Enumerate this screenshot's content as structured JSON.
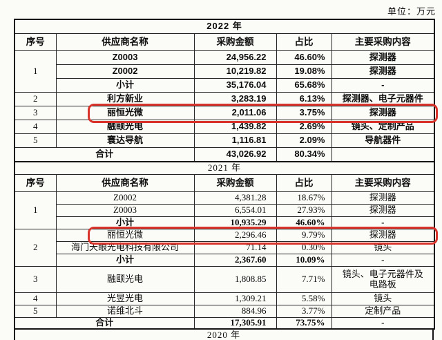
{
  "page": {
    "unit_label": "单位：万元",
    "accent_color": "#d8342c",
    "border_color": "#262626",
    "background_color": "#fbfbf7"
  },
  "tables": [
    {
      "year_label": "2022 年",
      "font_style": "bold",
      "headers": [
        "序号",
        "供应商名称",
        "采购金额",
        "占比",
        "主要采购内容"
      ],
      "rows": [
        {
          "seq": "1",
          "seq_rowspan": 3,
          "supplier": "Z0003",
          "amount": "24,956.22",
          "ratio": "46.60%",
          "content": "探测器"
        },
        {
          "supplier": "Z0002",
          "amount": "10,219.82",
          "ratio": "19.08%",
          "content": "探测器"
        },
        {
          "supplier": "小计",
          "amount": "35,176.04",
          "ratio": "65.68%",
          "content": "-",
          "emphasis": true
        },
        {
          "seq": "2",
          "supplier": "利方新业",
          "amount": "3,283.19",
          "ratio": "6.13%",
          "content": "探测器、电子元器件"
        },
        {
          "seq": "3",
          "supplier": "丽恒光微",
          "amount": "2,011.06",
          "ratio": "3.75%",
          "content": "探测器",
          "highlight": true
        },
        {
          "seq": "4",
          "supplier": "融颐光电",
          "amount": "1,439.82",
          "ratio": "2.69%",
          "content": "镜头、定制产品"
        },
        {
          "seq": "5",
          "supplier": "寰达导航",
          "amount": "1,116.81",
          "ratio": "2.09%",
          "content": "导航器件"
        },
        {
          "total_label": "合计",
          "amount": "43,026.92",
          "ratio": "80.34%",
          "content": "",
          "total": true
        }
      ]
    },
    {
      "year_label": "2021 年",
      "font_style": "serif",
      "headers": [
        "序号",
        "供应商名称",
        "采购金额",
        "占比",
        "主要采购内容"
      ],
      "rows": [
        {
          "seq": "1",
          "seq_rowspan": 3,
          "supplier": "Z0002",
          "amount": "4,381.28",
          "ratio": "18.67%",
          "content": "探测器"
        },
        {
          "supplier": "Z0003",
          "amount": "6,554.01",
          "ratio": "27.93%",
          "content": "探测器"
        },
        {
          "supplier": "小计",
          "amount": "10,935.29",
          "ratio": "46.60%",
          "content": "-",
          "emphasis": true
        },
        {
          "seq": "2",
          "seq_rowspan": 3,
          "supplier": "丽恒光微",
          "amount": "2,296.46",
          "ratio": "9.79%",
          "content": "探测器",
          "highlight": true
        },
        {
          "supplier": "海门天眼光电科技有限公司",
          "amount": "71.14",
          "ratio": "0.30%",
          "content": "镜头"
        },
        {
          "supplier": "小计",
          "amount": "2,367.60",
          "ratio": "10.09%",
          "content": "-",
          "emphasis": true
        },
        {
          "seq": "3",
          "supplier": "融颐光电",
          "amount": "1,808.85",
          "ratio": "7.71%",
          "content": "镜头、电子元器件及电路板",
          "tall": true
        },
        {
          "seq": "4",
          "supplier": "光昱光电",
          "amount": "1,309.21",
          "ratio": "5.58%",
          "content": "镜头"
        },
        {
          "seq": "5",
          "supplier": "诺维北斗",
          "amount": "884.96",
          "ratio": "3.77%",
          "content": "定制产品"
        },
        {
          "total_label": "合计",
          "amount": "17,305.91",
          "ratio": "73.75%",
          "content": "-",
          "total": true
        }
      ]
    }
  ],
  "partial_next_table": {
    "year_label": "2020 年"
  }
}
